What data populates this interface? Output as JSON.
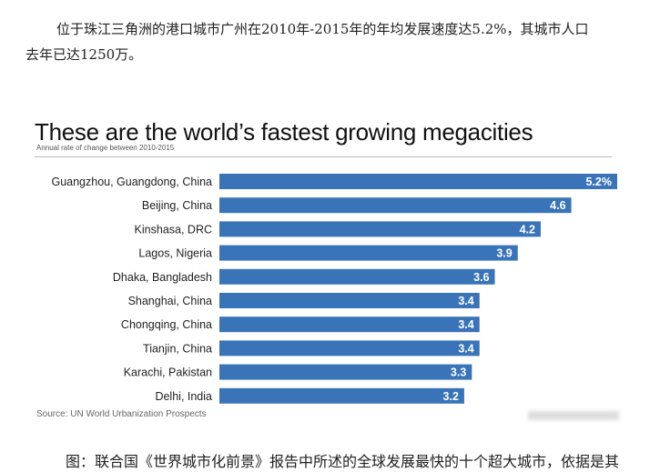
{
  "intro_text": {
    "line1": "位于珠江三角洲的港口城市广州在2010年-2015年的年均发展速度达5.2%，其城市人口",
    "line2": "去年已达1250万。"
  },
  "caption": "图：联合国《世界城市化前景》报告中所述的全球发展最快的十个超大城市，依据是其",
  "chart_data": {
    "type": "bar",
    "orientation": "horizontal",
    "title": "These are the world’s fastest growing megacities",
    "subtitle": "Annual rate of change between 2010-2015",
    "source": "Source: UN World Urbanization Prospects",
    "categories": [
      "Guangzhou, Guangdong, China",
      "Beijing, China",
      "Kinshasa, DRC",
      "Lagos, Nigeria",
      "Dhaka, Bangladesh",
      "Shanghai, China",
      "Chongqing, China",
      "Tianjin, China",
      "Karachi, Pakistan",
      "Delhi, India"
    ],
    "values": [
      5.2,
      4.6,
      4.2,
      3.9,
      3.6,
      3.4,
      3.4,
      3.4,
      3.3,
      3.2
    ],
    "value_labels": [
      "5.2%",
      "4.6",
      "4.2",
      "3.9",
      "3.6",
      "3.4",
      "3.4",
      "3.4",
      "3.3",
      "3.2"
    ],
    "xlim": [
      0,
      5.2
    ],
    "grid": false,
    "bar_color": "#3a74b8"
  }
}
